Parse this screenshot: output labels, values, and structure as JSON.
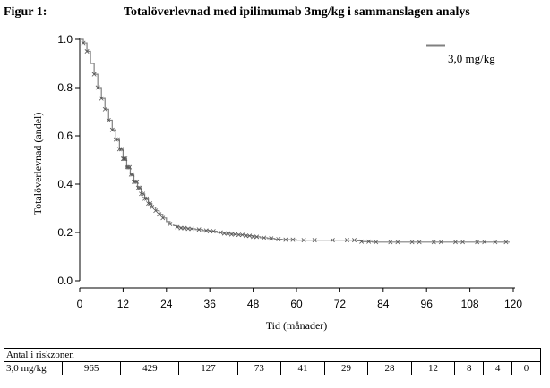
{
  "figure": {
    "label": "Figur 1:",
    "title": "Totalöverlevnad med ipilimumab 3mg/kg i sammanslagen analys"
  },
  "chart_data": {
    "type": "line",
    "title": "Totalöverlevnad med ipilimumab 3mg/kg i sammanslagen analys",
    "xlabel": "Tid (månader)",
    "ylabel": "Totalöverlevnad (andel)",
    "xlim": [
      0,
      120
    ],
    "ylim": [
      0.0,
      1.0
    ],
    "xticks": [
      0,
      12,
      24,
      36,
      48,
      60,
      72,
      84,
      96,
      108,
      120
    ],
    "yticks": [
      0.0,
      0.2,
      0.4,
      0.6,
      0.8,
      1.0
    ],
    "ytick_labels": [
      "0.0",
      "0.2",
      "0.4",
      "0.6",
      "0.8",
      "1.0"
    ],
    "legend_position": "top-right",
    "series": [
      {
        "name": "3,0 mg/kg",
        "color": "#808080",
        "step": true,
        "x": [
          0,
          0.5,
          1,
          2,
          3,
          4,
          5,
          6,
          7,
          8,
          9,
          10,
          11,
          12,
          13,
          14,
          15,
          16,
          17,
          18,
          19,
          20,
          21,
          22,
          23,
          24,
          25,
          26,
          27,
          28,
          30,
          32,
          34,
          36,
          38,
          40,
          42,
          44,
          46,
          48,
          50,
          52,
          54,
          56,
          58,
          60,
          63,
          66,
          69,
          72,
          75,
          77,
          78,
          81,
          84,
          90,
          96,
          102,
          108,
          114,
          119
        ],
        "y": [
          1.0,
          1.0,
          0.985,
          0.95,
          0.9,
          0.855,
          0.8,
          0.755,
          0.71,
          0.665,
          0.625,
          0.585,
          0.545,
          0.505,
          0.47,
          0.44,
          0.41,
          0.385,
          0.36,
          0.34,
          0.32,
          0.305,
          0.29,
          0.275,
          0.26,
          0.245,
          0.235,
          0.228,
          0.222,
          0.218,
          0.215,
          0.212,
          0.208,
          0.205,
          0.2,
          0.196,
          0.192,
          0.19,
          0.186,
          0.182,
          0.178,
          0.175,
          0.172,
          0.17,
          0.17,
          0.168,
          0.168,
          0.168,
          0.168,
          0.168,
          0.168,
          0.165,
          0.162,
          0.16,
          0.16,
          0.16,
          0.16,
          0.16,
          0.16,
          0.16,
          0.16
        ]
      }
    ],
    "censor_times": [
      1,
      2,
      4,
      5,
      6,
      7,
      8,
      9,
      10,
      10.5,
      11,
      11.5,
      12,
      12.3,
      12.6,
      13,
      13.4,
      13.8,
      14.2,
      14.6,
      15,
      15.4,
      15.8,
      16.2,
      16.6,
      17,
      17.5,
      18,
      18.5,
      19,
      19.5,
      20,
      21,
      22,
      23,
      25,
      27,
      28,
      29,
      30,
      31,
      33,
      35,
      36,
      37,
      39,
      40,
      41,
      42,
      43,
      44,
      45,
      46,
      47,
      48,
      49,
      51,
      53,
      55,
      57,
      59,
      62,
      65,
      70,
      74,
      76,
      78,
      80,
      82,
      86,
      88,
      92,
      94,
      98,
      100,
      104,
      106,
      110,
      112,
      115,
      118
    ]
  },
  "risk_table": {
    "title": "Antal i riskzonen",
    "row_label": "3,0 mg/kg",
    "values": [
      "965",
      "429",
      "127",
      "73",
      "41",
      "29",
      "28",
      "12",
      "8",
      "4",
      "0"
    ]
  }
}
